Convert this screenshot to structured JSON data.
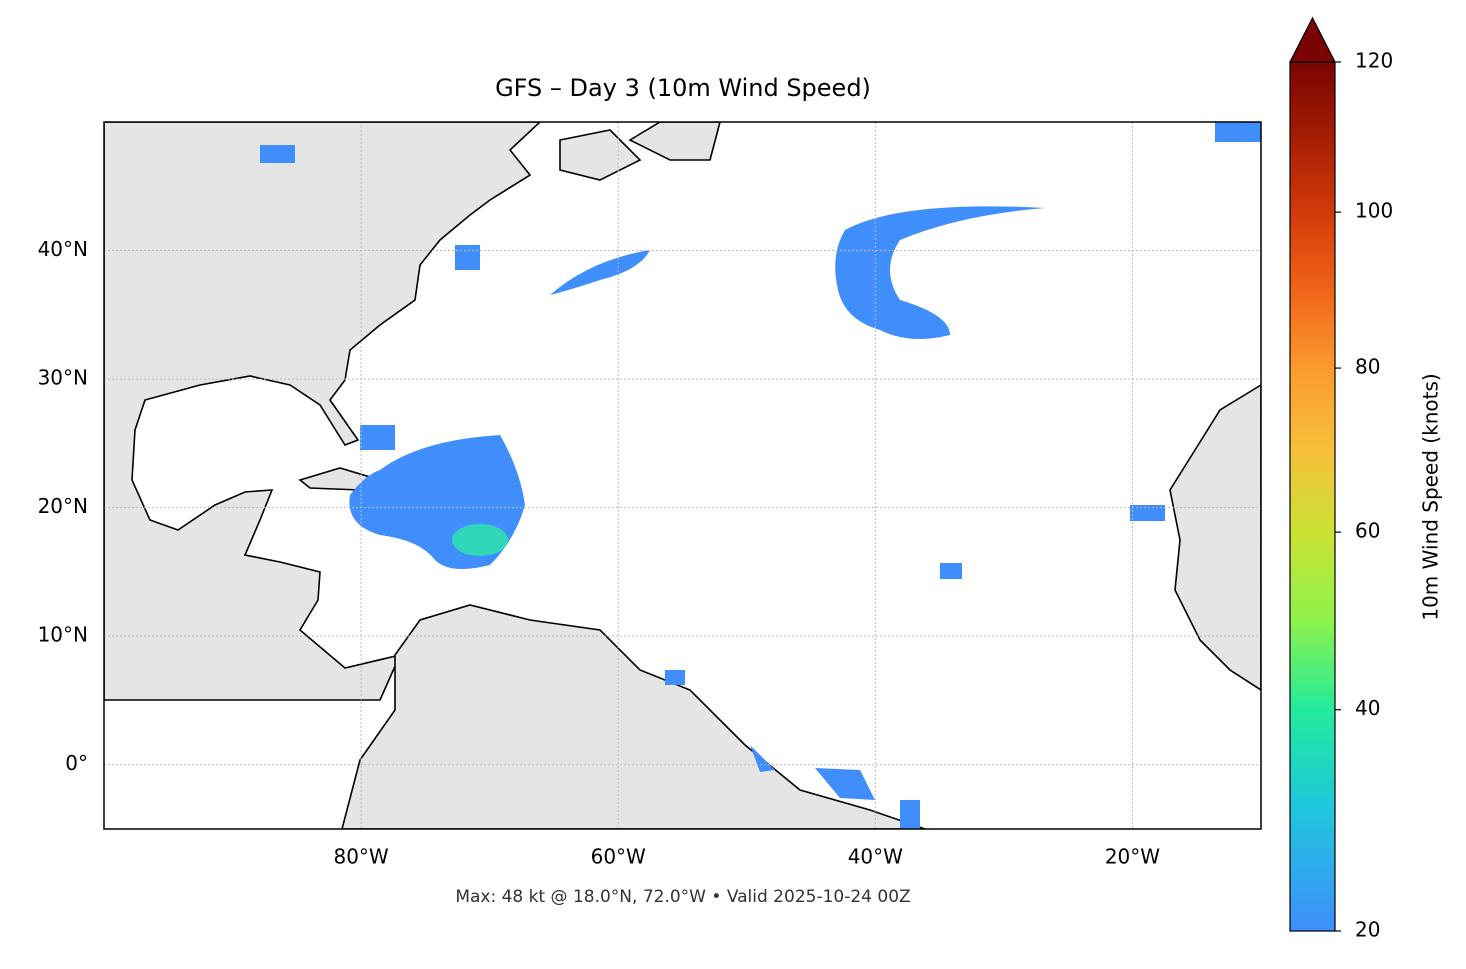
{
  "chart_data": {
    "type": "map",
    "title": "GFS – Day 3 (10m Wind Speed)",
    "annotation": "Max: 48 kt @ 18.0°N, 72.0°W • Valid 2025-10-24 00Z",
    "xlim": [
      -100,
      -10
    ],
    "ylim": [
      -5,
      50
    ],
    "xticks": [
      {
        "value": -80,
        "label": "80°W"
      },
      {
        "value": -60,
        "label": "60°W"
      },
      {
        "value": -40,
        "label": "40°W"
      },
      {
        "value": -20,
        "label": "20°W"
      }
    ],
    "yticks": [
      {
        "value": 0,
        "label": "0°"
      },
      {
        "value": 10,
        "label": "10°N"
      },
      {
        "value": 20,
        "label": "20°N"
      },
      {
        "value": 30,
        "label": "30°N"
      },
      {
        "value": 40,
        "label": "40°N"
      }
    ],
    "grid": true,
    "colorbar": {
      "label": "10m Wind Speed (knots)",
      "lim": [
        20,
        120
      ],
      "ticks": [
        20,
        40,
        60,
        80,
        100,
        120
      ],
      "norm": "power",
      "gamma": 0.85,
      "extend": "max",
      "colors": [
        "#3f8efc",
        "#1fc6dc",
        "#22eb9c",
        "#8ff24a",
        "#cbe235",
        "#f7bf3a",
        "#fb9a2d",
        "#f0631a",
        "#d33a0a",
        "#a51d04",
        "#7a0403"
      ]
    }
  }
}
